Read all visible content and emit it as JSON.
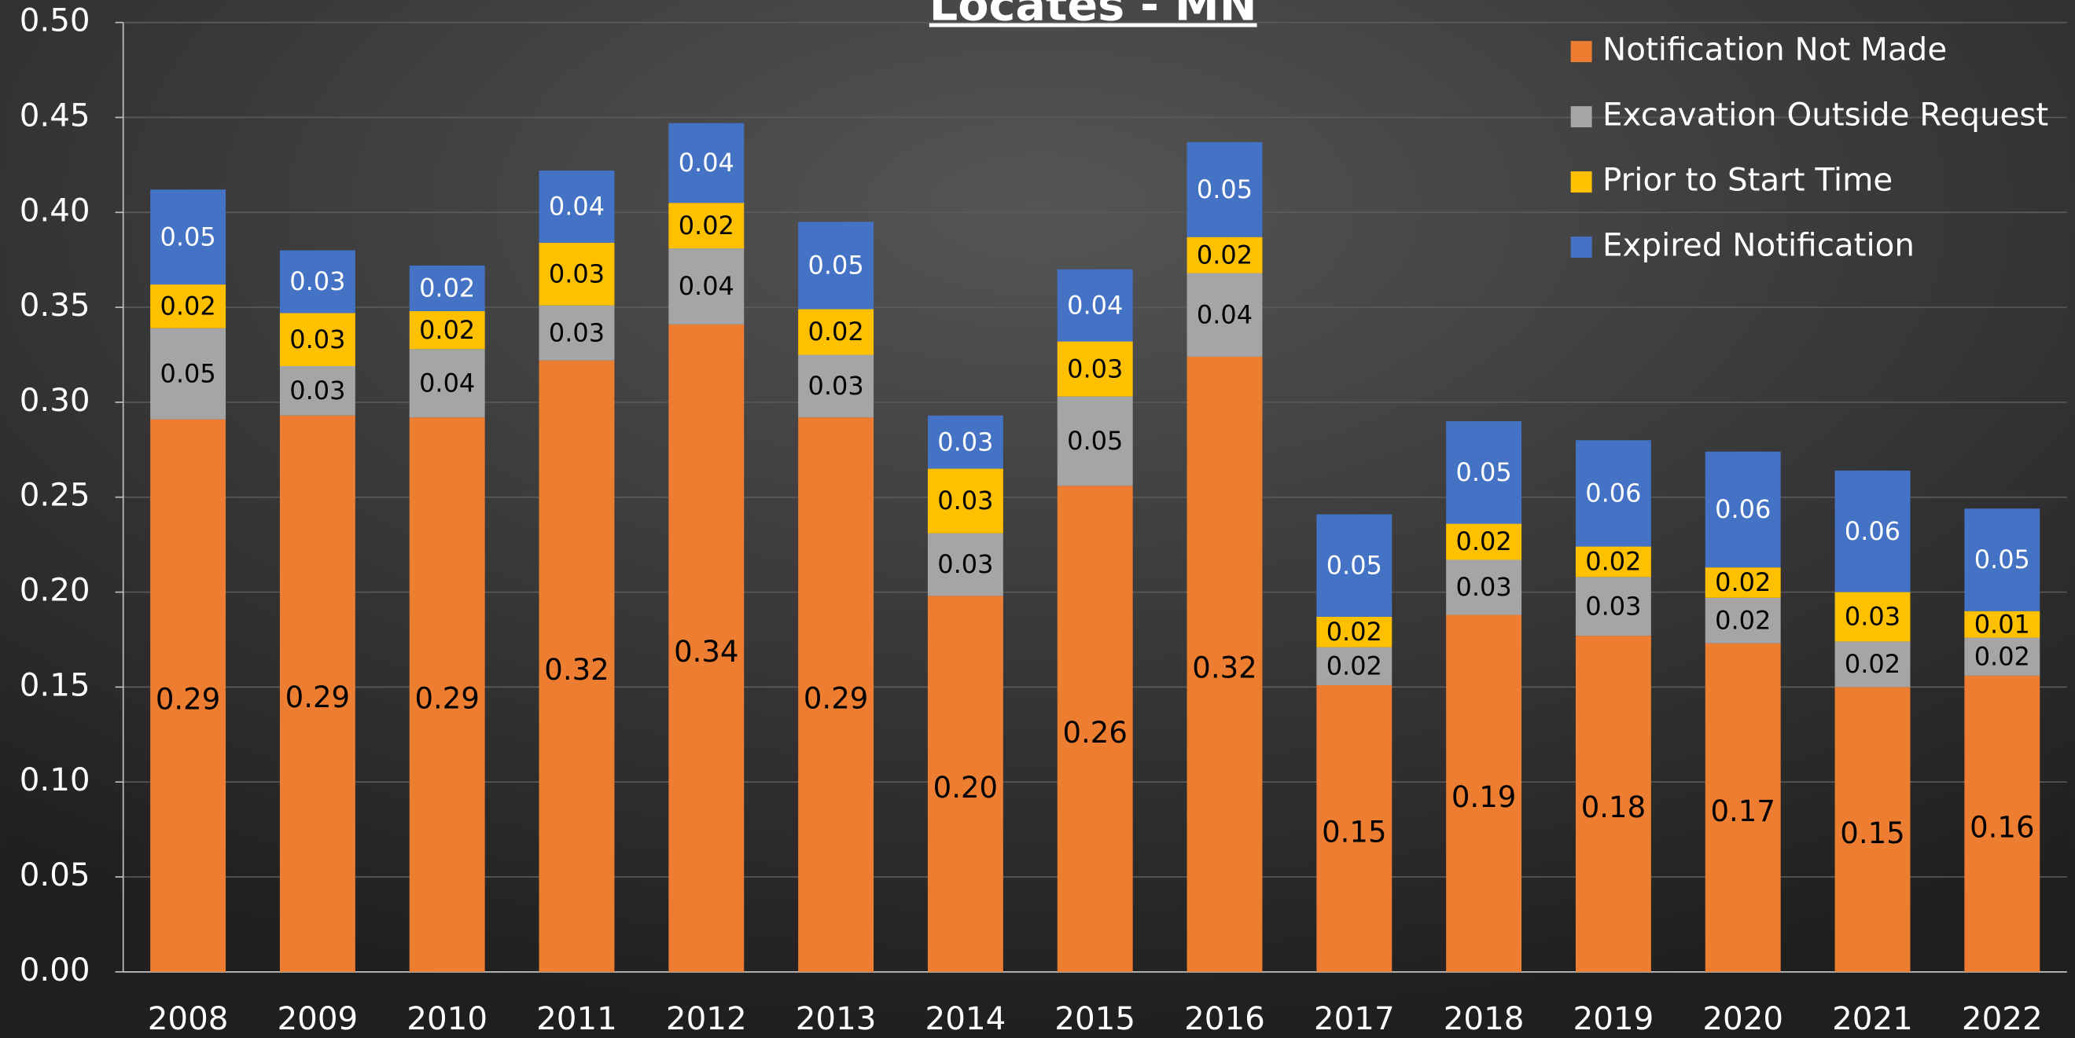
{
  "chart_data": {
    "type": "stacked_bar",
    "title": "Locates - MN",
    "categories": [
      "2008",
      "2009",
      "2010",
      "2011",
      "2012",
      "2013",
      "2014",
      "2015",
      "2016",
      "2017",
      "2018",
      "2019",
      "2020",
      "2021",
      "2022"
    ],
    "series": [
      {
        "name": "Notification Not Made",
        "color": "#ed7d31",
        "label_color": "#000000",
        "values": [
          0.291,
          0.293,
          0.292,
          0.322,
          0.341,
          0.292,
          0.198,
          0.256,
          0.324,
          0.151,
          0.188,
          0.177,
          0.173,
          0.15,
          0.156
        ],
        "value_labels": [
          "0.29",
          "0.29",
          "0.29",
          "0.32",
          "0.34",
          "0.29",
          "0.20",
          "0.26",
          "0.32",
          "0.15",
          "0.19",
          "0.18",
          "0.17",
          "0.15",
          "0.16"
        ]
      },
      {
        "name": "Excavation Outside Request",
        "color": "#a5a5a5",
        "label_color": "#000000",
        "values": [
          0.048,
          0.026,
          0.036,
          0.029,
          0.04,
          0.033,
          0.033,
          0.047,
          0.044,
          0.02,
          0.029,
          0.031,
          0.024,
          0.024,
          0.02
        ],
        "value_labels": [
          "0.05",
          "0.03",
          "0.04",
          "0.03",
          "0.04",
          "0.03",
          "0.03",
          "0.05",
          "0.04",
          "0.02",
          "0.03",
          "0.03",
          "0.02",
          "0.02",
          "0.02"
        ]
      },
      {
        "name": "Prior to Start Time",
        "color": "#ffc000",
        "label_color": "#000000",
        "values": [
          0.023,
          0.028,
          0.02,
          0.033,
          0.024,
          0.024,
          0.034,
          0.029,
          0.019,
          0.016,
          0.019,
          0.016,
          0.016,
          0.026,
          0.014
        ],
        "value_labels": [
          "0.02",
          "0.03",
          "0.02",
          "0.03",
          "0.02",
          "0.02",
          "0.03",
          "0.03",
          "0.02",
          "0.02",
          "0.02",
          "0.02",
          "0.02",
          "0.03",
          "0.01"
        ]
      },
      {
        "name": "Expired Notification",
        "color": "#4472c4",
        "label_color": "#ffffff",
        "values": [
          0.05,
          0.033,
          0.024,
          0.038,
          0.042,
          0.046,
          0.028,
          0.038,
          0.05,
          0.054,
          0.054,
          0.056,
          0.061,
          0.064,
          0.054
        ],
        "value_labels": [
          "0.05",
          "0.03",
          "0.02",
          "0.04",
          "0.04",
          "0.05",
          "0.03",
          "0.04",
          "0.05",
          "0.05",
          "0.05",
          "0.06",
          "0.06",
          "0.06",
          "0.05"
        ]
      }
    ],
    "ylim": [
      0,
      0.5
    ],
    "yticks": [
      {
        "value": 0,
        "label": "0.00"
      },
      {
        "value": 0.05,
        "label": "0.05"
      },
      {
        "value": 0.1,
        "label": "0.10"
      },
      {
        "value": 0.15,
        "label": "0.15"
      },
      {
        "value": 0.2,
        "label": "0.20"
      },
      {
        "value": 0.25,
        "label": "0.25"
      },
      {
        "value": 0.3,
        "label": "0.30"
      },
      {
        "value": 0.35,
        "label": "0.35"
      },
      {
        "value": 0.4,
        "label": "0.40"
      },
      {
        "value": 0.45,
        "label": "0.45"
      },
      {
        "value": 0.5,
        "label": "0.50"
      }
    ],
    "grid": true,
    "legend": "top-right"
  }
}
